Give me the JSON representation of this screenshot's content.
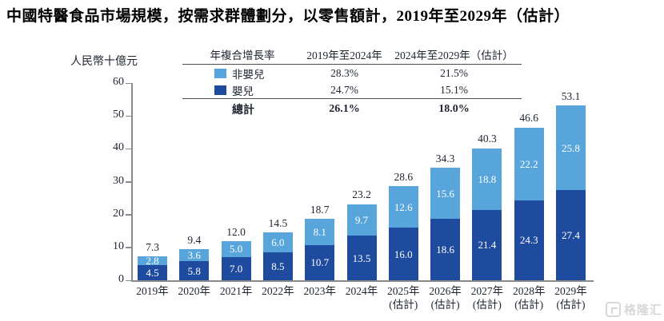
{
  "title": "中國特醫食品市場規模，按需求群體劃分，以零售額計，2019年至2029年（估計）",
  "ylabel": "人民幣十億元",
  "cagr_table": {
    "header": [
      "年複合增長率",
      "2019年至2024年",
      "2024年至2029年（估計）"
    ],
    "rows": [
      {
        "label": "非嬰兒",
        "swatch": "light-blue",
        "v1": "28.3%",
        "v2": "21.5%"
      },
      {
        "label": "嬰兒",
        "swatch": "dark-blue",
        "v1": "24.7%",
        "v2": "15.1%"
      }
    ],
    "total": {
      "label": "總計",
      "v1": "26.1%",
      "v2": "18.0%"
    }
  },
  "chart_data": {
    "type": "bar",
    "stacked": true,
    "title": "中國特醫食品市場規模，按需求群體劃分，以零售額計，2019年至2029年（估計）",
    "ylabel": "人民幣十億元",
    "ylim": [
      0,
      60
    ],
    "yticks": [
      0,
      10,
      20,
      30,
      40,
      50,
      60
    ],
    "categories": [
      "2019年",
      "2020年",
      "2021年",
      "2022年",
      "2023年",
      "2024年",
      "2025年",
      "2026年",
      "2027年",
      "2028年",
      "2029年"
    ],
    "estimate_from_index": 6,
    "estimate_label": "(估計)",
    "series": [
      {
        "name": "嬰兒",
        "color": "#1F4B9E",
        "values": [
          4.5,
          5.8,
          7.0,
          8.5,
          10.7,
          13.5,
          16.0,
          18.6,
          21.4,
          24.3,
          27.4
        ]
      },
      {
        "name": "非嬰兒",
        "color": "#58A5DB",
        "values": [
          2.8,
          3.6,
          5.0,
          6.0,
          8.1,
          9.7,
          12.6,
          15.6,
          18.8,
          22.2,
          25.8
        ]
      }
    ],
    "totals": [
      7.3,
      9.4,
      12.0,
      14.5,
      18.7,
      23.2,
      28.6,
      34.3,
      40.3,
      46.6,
      53.1
    ],
    "legend_position": "top-table",
    "grid": false
  },
  "colors": {
    "light_blue": "#58A5DB",
    "dark_blue": "#1F4B9E",
    "axis": "#8a8a8a",
    "text": "#1f2430"
  },
  "watermark": {
    "text": "格隆汇"
  }
}
